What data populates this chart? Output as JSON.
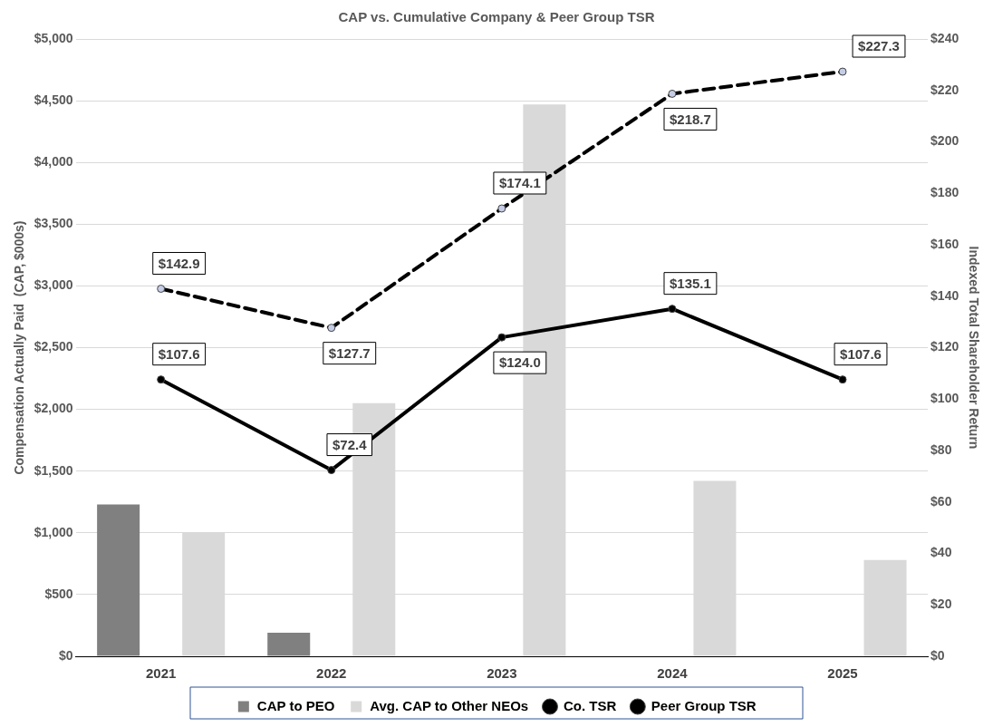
{
  "chart_data": {
    "type": "bar",
    "title": "CAP vs. Cumulative Company & Peer Group TSR",
    "categories": [
      "2021",
      "2022",
      "2023",
      "2024",
      "2025"
    ],
    "ylabel": "Compensation Actually Paid  (CAP, $000s)",
    "y2label": "Indexed Total Shareholder Return",
    "series": [
      {
        "name": "CAP to PEO",
        "color": "#808080",
        "values": [
          1230,
          190,
          null,
          null,
          null
        ]
      },
      {
        "name": "Avg. CAP to Other NEOs",
        "color": "#d9d9d9",
        "values": [
          1000,
          2050,
          4470,
          1420,
          780
        ]
      },
      {
        "name": "Co. TSR",
        "type": "line",
        "axis": "y2",
        "color": "#000000",
        "line_style": "solid",
        "values": [
          107.6,
          72.4,
          124.0,
          135.1,
          107.6
        ],
        "value_labels": [
          "$107.6",
          "$72.4",
          "$124.0",
          "$135.1",
          "$107.6"
        ]
      },
      {
        "name": "Peer Group TSR",
        "type": "line",
        "axis": "y2",
        "color": "#000000",
        "line_style": "dashed",
        "values": [
          142.9,
          127.7,
          174.1,
          218.7,
          227.3
        ],
        "value_labels": [
          "$142.9",
          "$127.7",
          "$174.1",
          "$218.7",
          "$227.3"
        ]
      }
    ],
    "ylim": [
      0,
      5000
    ],
    "yticks": [
      {
        "value": 0,
        "label": "$0"
      },
      {
        "value": 500,
        "label": "$500"
      },
      {
        "value": 1000,
        "label": "$1,000"
      },
      {
        "value": 1500,
        "label": "$1,500"
      },
      {
        "value": 2000,
        "label": "$2,000"
      },
      {
        "value": 2500,
        "label": "$2,500"
      },
      {
        "value": 3000,
        "label": "$3,000"
      },
      {
        "value": 3500,
        "label": "$3,500"
      },
      {
        "value": 4000,
        "label": "$4,000"
      },
      {
        "value": 4500,
        "label": "$4,500"
      },
      {
        "value": 5000,
        "label": "$5,000"
      }
    ],
    "y2lim": [
      0,
      240
    ],
    "y2ticks": [
      {
        "value": 0,
        "label": "$0"
      },
      {
        "value": 20,
        "label": "$20"
      },
      {
        "value": 40,
        "label": "$40"
      },
      {
        "value": 60,
        "label": "$60"
      },
      {
        "value": 80,
        "label": "$80"
      },
      {
        "value": 100,
        "label": "$100"
      },
      {
        "value": 120,
        "label": "$120"
      },
      {
        "value": 140,
        "label": "$140"
      },
      {
        "value": 160,
        "label": "$160"
      },
      {
        "value": 180,
        "label": "$180"
      },
      {
        "value": 200,
        "label": "$200"
      },
      {
        "value": 220,
        "label": "$220"
      },
      {
        "value": 240,
        "label": "$240"
      }
    ],
    "grid": "y",
    "legend": "bottom",
    "marker": "circle"
  }
}
